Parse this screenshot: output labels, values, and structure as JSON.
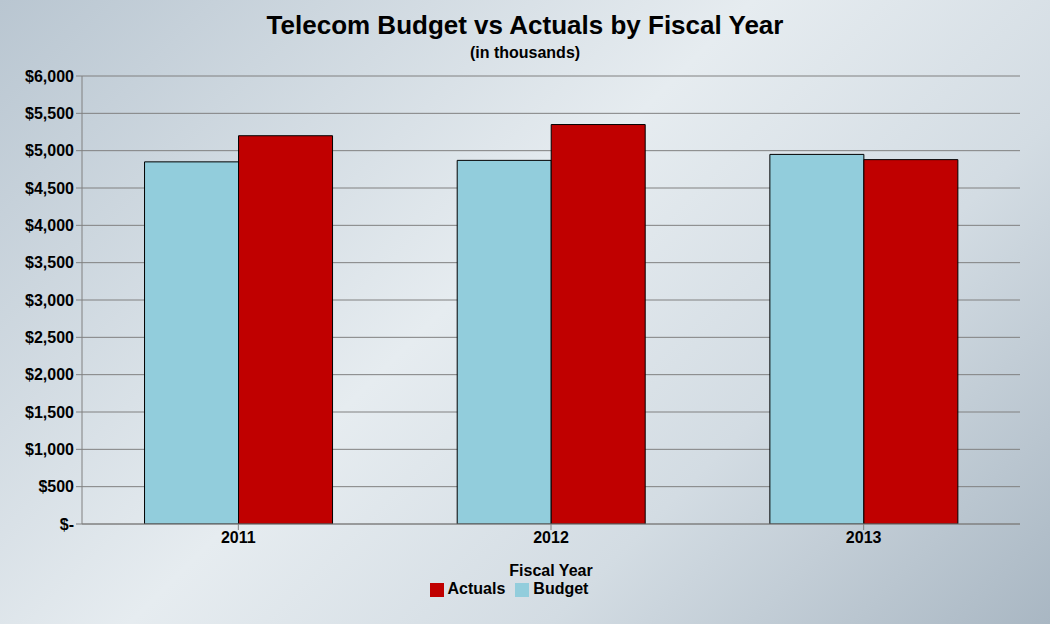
{
  "chart_data": {
    "type": "bar",
    "title": "Telecom Budget vs Actuals by Fiscal Year",
    "subtitle": "(in thousands)",
    "x_label": "Fiscal Year",
    "categories": [
      "2011",
      "2012",
      "2013"
    ],
    "series": [
      {
        "name": "Budget",
        "color": "#92cddc",
        "values": [
          4850,
          4870,
          4950
        ]
      },
      {
        "name": "Actuals",
        "color": "#c00000",
        "values": [
          5200,
          5350,
          4880
        ]
      }
    ],
    "ylim": [
      0,
      6000
    ],
    "yticks": [
      {
        "value": 0,
        "label": "$-"
      },
      {
        "value": 500,
        "label": "$500"
      },
      {
        "value": 1000,
        "label": "$1,000"
      },
      {
        "value": 1500,
        "label": "$1,500"
      },
      {
        "value": 2000,
        "label": "$2,000"
      },
      {
        "value": 2500,
        "label": "$2,500"
      },
      {
        "value": 3000,
        "label": "$3,000"
      },
      {
        "value": 3500,
        "label": "$3,500"
      },
      {
        "value": 4000,
        "label": "$4,000"
      },
      {
        "value": 4500,
        "label": "$4,500"
      },
      {
        "value": 5000,
        "label": "$5,000"
      },
      {
        "value": 5500,
        "label": "$5,500"
      },
      {
        "value": 6000,
        "label": "$6,000"
      }
    ],
    "grid": true,
    "legend": "bottom"
  }
}
